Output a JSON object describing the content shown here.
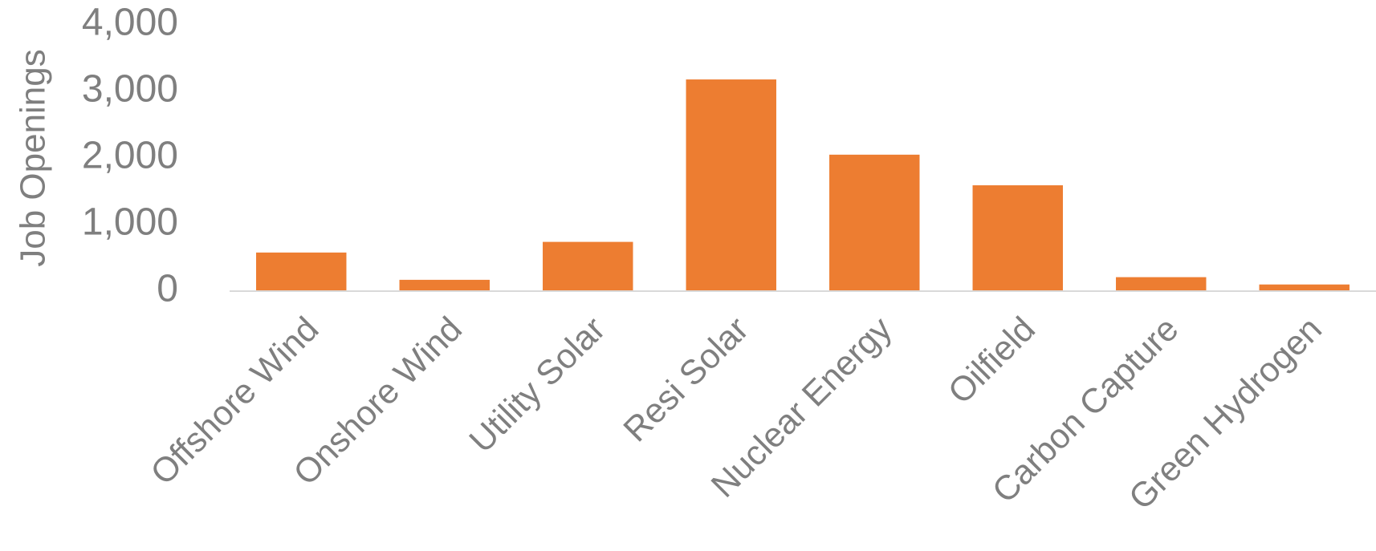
{
  "chart_data": {
    "type": "bar",
    "y_label": "Job Openings",
    "categories": [
      "Offshore Wind",
      "Onshore Wind",
      "Utility Solar",
      "Resi Solar",
      "Nuclear Energy",
      "Oilfield",
      "Carbon Capture",
      "Green Hydrogen"
    ],
    "values": [
      580,
      170,
      740,
      3180,
      2050,
      1590,
      210,
      100
    ],
    "color": "#ed7d31",
    "ylim": [
      0,
      4000
    ],
    "yticks": [
      0,
      {
        "value": 1000,
        "label": "1,000"
      },
      {
        "value": 2000,
        "label": "2,000"
      },
      {
        "value": 3000,
        "label": "3,000"
      },
      {
        "value": 4000,
        "label": "4,000"
      }
    ],
    "grid": false
  }
}
